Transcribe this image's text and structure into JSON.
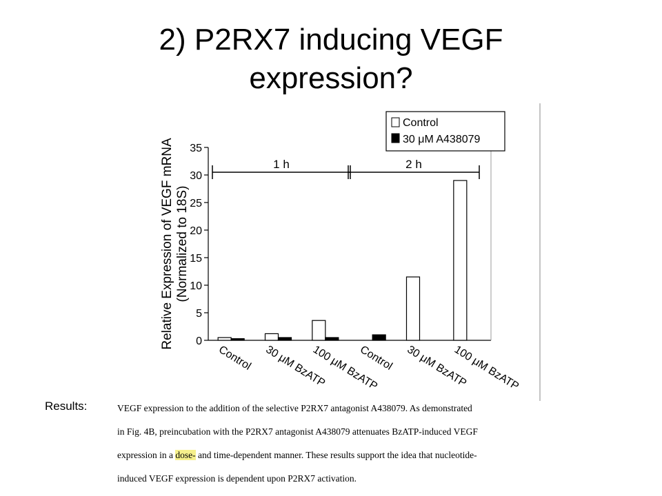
{
  "slide": {
    "title_line1": "2) P2RX7 inducing VEGF",
    "title_line2": "expression?",
    "results_label": "Results:"
  },
  "results_text": {
    "line1": "VEGF expression to the addition of the selective P2RX7 antagonist A438079.  As demonstrated",
    "line2": "in Fig. 4B, preincubation with the P2RX7 antagonist A438079 attenuates BzATP-induced VEGF",
    "line3_before": "expression in a ",
    "line3_highlight": "dose-",
    "line3_after": " and time-dependent manner.  These results support the idea that nucleotide-",
    "line4": "induced VEGF expression is dependent upon P2RX7 activation.",
    "highlight_color": "#f6f08c"
  },
  "chart_data": {
    "type": "bar",
    "ylabel_line1": "Relative Expression of VEGF mRNA",
    "ylabel_line2": "(Normalized to 18S)",
    "ylim": [
      0,
      35
    ],
    "yticks": [
      0,
      5,
      10,
      15,
      20,
      25,
      30,
      35
    ],
    "categories": [
      "Control",
      "30 μM BzATP",
      "100 μM BzATP",
      "Control",
      "30 μM BzATP",
      "100 μM BzATP"
    ],
    "groups": [
      {
        "label": "1 h",
        "categories": [
          0,
          1,
          2
        ]
      },
      {
        "label": "2 h",
        "categories": [
          3,
          4,
          5
        ]
      }
    ],
    "series": [
      {
        "name": "Control",
        "fill": "#ffffff",
        "values": [
          0.5,
          1.2,
          3.6,
          null,
          11.5,
          29.0
        ]
      },
      {
        "name": "30 μM A438079",
        "fill": "#000000",
        "values": [
          0.3,
          0.5,
          0.5,
          1.0,
          null,
          null
        ]
      }
    ],
    "legend_position": "top-right",
    "grid": false
  }
}
